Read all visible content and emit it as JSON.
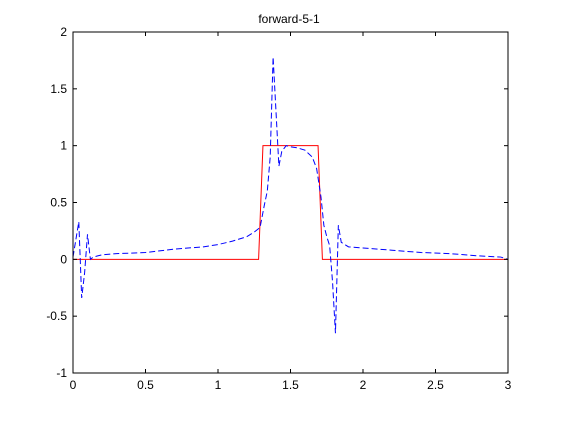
{
  "chart_data": {
    "type": "line",
    "title": "forward-5-1",
    "xlabel": "",
    "ylabel": "",
    "xlim": [
      0,
      3
    ],
    "ylim": [
      -1,
      2
    ],
    "xticks": [
      0,
      0.5,
      1,
      1.5,
      2,
      2.5,
      3
    ],
    "xtick_labels": [
      "0",
      "0.5",
      "1",
      "1.5",
      "2",
      "2.5",
      "3"
    ],
    "yticks": [
      -1,
      -0.5,
      0,
      0.5,
      1,
      1.5,
      2
    ],
    "ytick_labels": [
      "-1",
      "-0.5",
      "0",
      "0.5",
      "1",
      "1.5",
      "2"
    ],
    "grid": false,
    "legend": "none",
    "series": [
      {
        "color": "#ff0000",
        "line_style": "solid",
        "x": [
          0,
          1.28,
          1.31,
          1.69,
          1.72,
          3.0
        ],
        "y": [
          0,
          0,
          1,
          1,
          0,
          0
        ]
      },
      {
        "color": "#0000ff",
        "line_style": "dashed",
        "x": [
          0,
          0.04,
          0.06,
          0.08,
          0.1,
          0.12,
          0.14,
          0.17,
          0.2,
          0.3,
          0.5,
          0.7,
          0.9,
          1.0,
          1.1,
          1.2,
          1.25,
          1.29,
          1.32,
          1.34,
          1.36,
          1.38,
          1.4,
          1.42,
          1.44,
          1.47,
          1.5,
          1.55,
          1.6,
          1.65,
          1.68,
          1.71,
          1.73,
          1.75,
          1.77,
          1.79,
          1.81,
          1.83,
          1.85,
          1.9,
          2.0,
          2.2,
          2.4,
          2.6,
          2.8,
          2.95,
          3.0
        ],
        "y": [
          0.02,
          0.33,
          -0.34,
          -0.12,
          0.22,
          0.0,
          0.02,
          0.03,
          0.04,
          0.05,
          0.06,
          0.09,
          0.11,
          0.13,
          0.16,
          0.2,
          0.24,
          0.28,
          0.48,
          0.6,
          0.9,
          1.78,
          1.3,
          0.82,
          0.95,
          1.0,
          0.99,
          0.98,
          0.96,
          0.9,
          0.8,
          0.55,
          0.3,
          0.2,
          0.12,
          -0.2,
          -0.65,
          0.3,
          0.15,
          0.11,
          0.1,
          0.08,
          0.06,
          0.05,
          0.03,
          0.02,
          0.0
        ]
      }
    ]
  }
}
